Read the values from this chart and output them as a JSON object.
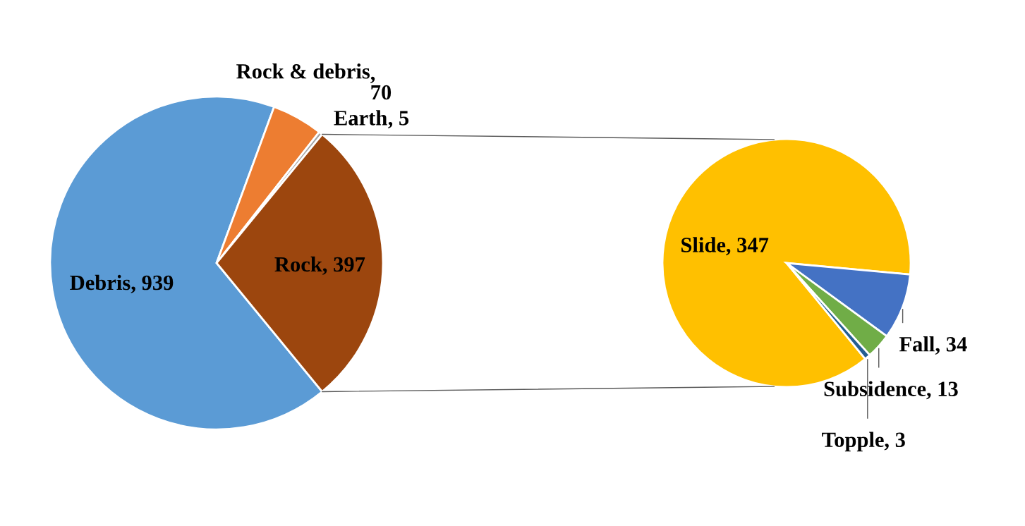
{
  "chart_data": [
    {
      "type": "pie",
      "categories": [
        "Debris",
        "Rock & debris",
        "Earth",
        "Rock"
      ],
      "values": [
        939,
        70,
        5,
        397
      ],
      "colors": [
        "#5b9bd5",
        "#ed7d31",
        "#a5a5a5",
        "#9c460e"
      ],
      "value_labels": [
        ", 939",
        ",\n70",
        ", 5",
        ", 397"
      ]
    },
    {
      "type": "pie",
      "categories": [
        "Slide",
        "Fall",
        "Subsidence",
        "Topple"
      ],
      "values": [
        347,
        34,
        13,
        3
      ],
      "colors": [
        "#ffc000",
        "#4472c4",
        "#70ad47",
        "#255e91"
      ],
      "value_labels": [
        ", 347",
        ", 34",
        ", 13",
        ", 3"
      ]
    }
  ]
}
